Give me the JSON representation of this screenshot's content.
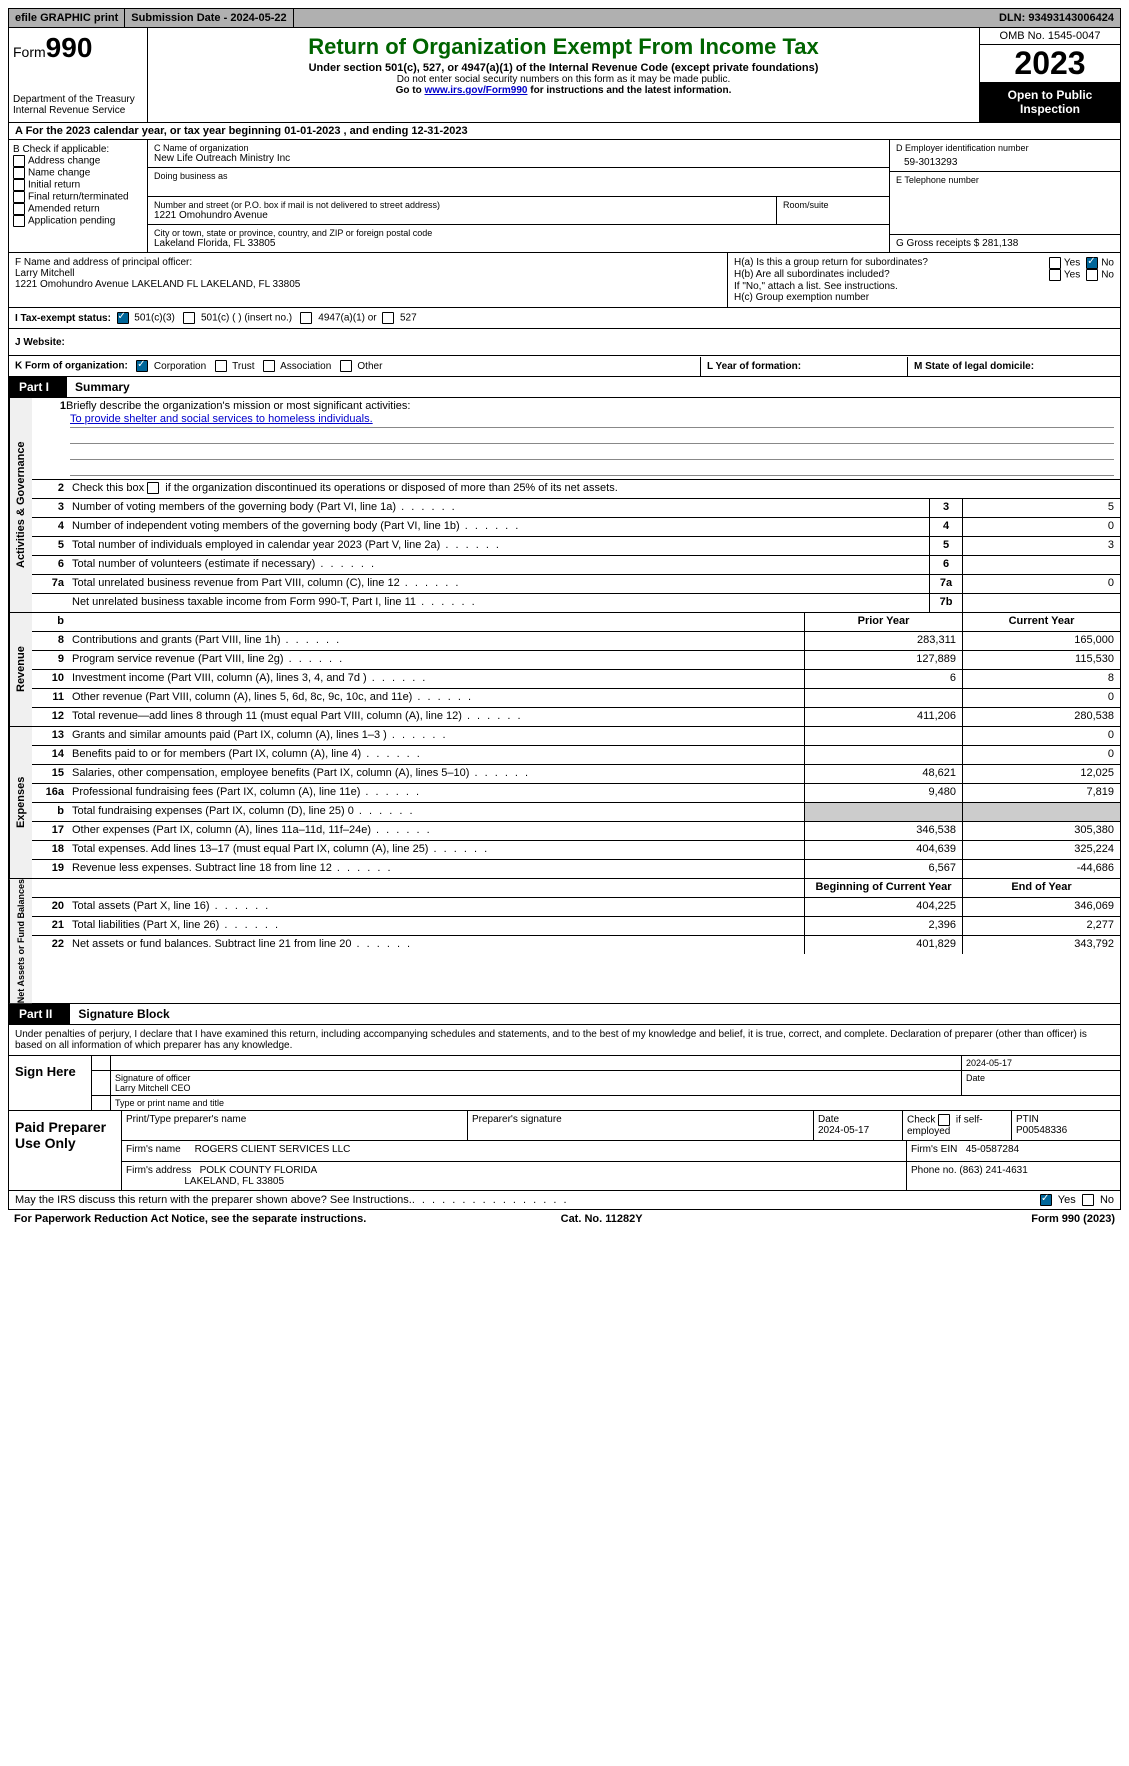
{
  "topbar": {
    "efile": "efile GRAPHIC print",
    "submission_label": "Submission Date - ",
    "submission_date": "2024-05-22",
    "dln_label": "DLN: ",
    "dln": "93493143006424"
  },
  "header": {
    "form_prefix": "Form",
    "form_number": "990",
    "dept": "Department of the Treasury\nInternal Revenue Service",
    "title": "Return of Organization Exempt From Income Tax",
    "subtitle": "Under section 501(c), 527, or 4947(a)(1) of the Internal Revenue Code (except private foundations)",
    "note1": "Do not enter social security numbers on this form as it may be made public.",
    "note2_pre": "Go to ",
    "note2_link": "www.irs.gov/Form990",
    "note2_post": " for instructions and the latest information.",
    "omb": "OMB No. 1545-0047",
    "year": "2023",
    "open": "Open to Public Inspection"
  },
  "sectionA": "A For the 2023 calendar year, or tax year beginning 01-01-2023   , and ending 12-31-2023",
  "colB": {
    "title": "B Check if applicable:",
    "opts": [
      "Address change",
      "Name change",
      "Initial return",
      "Final return/terminated",
      "Amended return",
      "Application pending"
    ]
  },
  "colC": {
    "name_label": "C Name of organization",
    "name": "New Life Outreach Ministry Inc",
    "dba_label": "Doing business as",
    "street_label": "Number and street (or P.O. box if mail is not delivered to street address)",
    "room_label": "Room/suite",
    "street": "1221 Omohundro Avenue",
    "city_label": "City or town, state or province, country, and ZIP or foreign postal code",
    "city": "Lakeland Florida, FL  33805"
  },
  "colD": {
    "ein_label": "D Employer identification number",
    "ein": "59-3013293",
    "phone_label": "E Telephone number",
    "gross_label": "G Gross receipts $ ",
    "gross": "281,138"
  },
  "officer": {
    "label": "F  Name and address of principal officer:",
    "name": "Larry Mitchell",
    "addr": "1221 Omohundro Avenue LAKELAND FL LAKELAND, FL  33805"
  },
  "sectionH": {
    "ha": "H(a)  Is this a group return for subordinates?",
    "hb": "H(b)  Are all subordinates included?",
    "hb_note": "If \"No,\" attach a list. See instructions.",
    "hc": "H(c)  Group exemption number"
  },
  "taxExempt": {
    "label": "I  Tax-exempt status:",
    "o1": "501(c)(3)",
    "o2": "501(c) (  ) (insert no.)",
    "o3": "4947(a)(1) or",
    "o4": "527"
  },
  "website_label": "J  Website:",
  "korg": {
    "k_label": "K Form of organization:",
    "k_opts": [
      "Corporation",
      "Trust",
      "Association",
      "Other"
    ],
    "l_label": "L Year of formation:",
    "m_label": "M State of legal domicile:"
  },
  "part1": {
    "tab": "Part I",
    "title": "Summary",
    "mission_label": "Briefly describe the organization's mission or most significant activities:",
    "mission": "To provide shelter and social services to homeless individuals.",
    "line2": "Check this box        if the organization discontinued its operations or disposed of more than 25% of its net assets.",
    "rows_gov": [
      {
        "n": "3",
        "d": "Number of voting members of the governing body (Part VI, line 1a)",
        "k": "3",
        "v": "5"
      },
      {
        "n": "4",
        "d": "Number of independent voting members of the governing body (Part VI, line 1b)",
        "k": "4",
        "v": "0"
      },
      {
        "n": "5",
        "d": "Total number of individuals employed in calendar year 2023 (Part V, line 2a)",
        "k": "5",
        "v": "3"
      },
      {
        "n": "6",
        "d": "Total number of volunteers (estimate if necessary)",
        "k": "6",
        "v": ""
      },
      {
        "n": "7a",
        "d": "Total unrelated business revenue from Part VIII, column (C), line 12",
        "k": "7a",
        "v": "0"
      },
      {
        "n": "",
        "d": "Net unrelated business taxable income from Form 990-T, Part I, line 11",
        "k": "7b",
        "v": ""
      }
    ],
    "b_label": "b",
    "prior_label": "Prior Year",
    "current_label": "Current Year",
    "rows_rev": [
      {
        "n": "8",
        "d": "Contributions and grants (Part VIII, line 1h)",
        "p": "283,311",
        "c": "165,000"
      },
      {
        "n": "9",
        "d": "Program service revenue (Part VIII, line 2g)",
        "p": "127,889",
        "c": "115,530"
      },
      {
        "n": "10",
        "d": "Investment income (Part VIII, column (A), lines 3, 4, and 7d )",
        "p": "6",
        "c": "8"
      },
      {
        "n": "11",
        "d": "Other revenue (Part VIII, column (A), lines 5, 6d, 8c, 9c, 10c, and 11e)",
        "p": "",
        "c": "0"
      },
      {
        "n": "12",
        "d": "Total revenue—add lines 8 through 11 (must equal Part VIII, column (A), line 12)",
        "p": "411,206",
        "c": "280,538"
      }
    ],
    "rows_exp": [
      {
        "n": "13",
        "d": "Grants and similar amounts paid (Part IX, column (A), lines 1–3 )",
        "p": "",
        "c": "0"
      },
      {
        "n": "14",
        "d": "Benefits paid to or for members (Part IX, column (A), line 4)",
        "p": "",
        "c": "0"
      },
      {
        "n": "15",
        "d": "Salaries, other compensation, employee benefits (Part IX, column (A), lines 5–10)",
        "p": "48,621",
        "c": "12,025"
      },
      {
        "n": "16a",
        "d": "Professional fundraising fees (Part IX, column (A), line 11e)",
        "p": "9,480",
        "c": "7,819"
      },
      {
        "n": "b",
        "d": "Total fundraising expenses (Part IX, column (D), line 25) 0",
        "p": "shaded",
        "c": "shaded"
      },
      {
        "n": "17",
        "d": "Other expenses (Part IX, column (A), lines 11a–11d, 11f–24e)",
        "p": "346,538",
        "c": "305,380"
      },
      {
        "n": "18",
        "d": "Total expenses. Add lines 13–17 (must equal Part IX, column (A), line 25)",
        "p": "404,639",
        "c": "325,224"
      },
      {
        "n": "19",
        "d": "Revenue less expenses. Subtract line 18 from line 12",
        "p": "6,567",
        "c": "-44,686"
      }
    ],
    "begin_label": "Beginning of Current Year",
    "end_label": "End of Year",
    "rows_net": [
      {
        "n": "20",
        "d": "Total assets (Part X, line 16)",
        "p": "404,225",
        "c": "346,069"
      },
      {
        "n": "21",
        "d": "Total liabilities (Part X, line 26)",
        "p": "2,396",
        "c": "2,277"
      },
      {
        "n": "22",
        "d": "Net assets or fund balances. Subtract line 21 from line 20",
        "p": "401,829",
        "c": "343,792"
      }
    ]
  },
  "vlabels": {
    "gov": "Activities & Governance",
    "rev": "Revenue",
    "exp": "Expenses",
    "net": "Net Assets or Fund Balances"
  },
  "part2": {
    "tab": "Part II",
    "title": "Signature Block",
    "perjury": "Under penalties of perjury, I declare that I have examined this return, including accompanying schedules and statements, and to the best of my knowledge and belief, it is true, correct, and complete. Declaration of preparer (other than officer) is based on all information of which preparer has any knowledge."
  },
  "sign": {
    "left": "Sign Here",
    "date": "2024-05-17",
    "sig_label": "Signature of officer",
    "officer": "Larry Mitchell CEO",
    "name_label": "Type or print name and title",
    "date_label": "Date"
  },
  "paid": {
    "left": "Paid Preparer Use Only",
    "h1": "Print/Type preparer's name",
    "h2": "Preparer's signature",
    "h3": "Date",
    "date": "2024-05-17",
    "h4_pre": "Check",
    "h4_post": "if self-employed",
    "h5": "PTIN",
    "ptin": "P00548336",
    "firm_name_label": "Firm's name",
    "firm_name": "ROGERS CLIENT SERVICES LLC",
    "firm_ein_label": "Firm's EIN",
    "firm_ein": "45-0587284",
    "firm_addr_label": "Firm's address",
    "firm_addr1": "POLK COUNTY FLORIDA",
    "firm_addr2": "LAKELAND, FL  33805",
    "phone_label": "Phone no.",
    "phone": "(863) 241-4631"
  },
  "discuss": "May the IRS discuss this return with the preparer shown above? See Instructions.",
  "yes": "Yes",
  "no": "No",
  "footer": {
    "left": "For Paperwork Reduction Act Notice, see the separate instructions.",
    "mid": "Cat. No. 11282Y",
    "right": "Form 990 (2023)"
  }
}
